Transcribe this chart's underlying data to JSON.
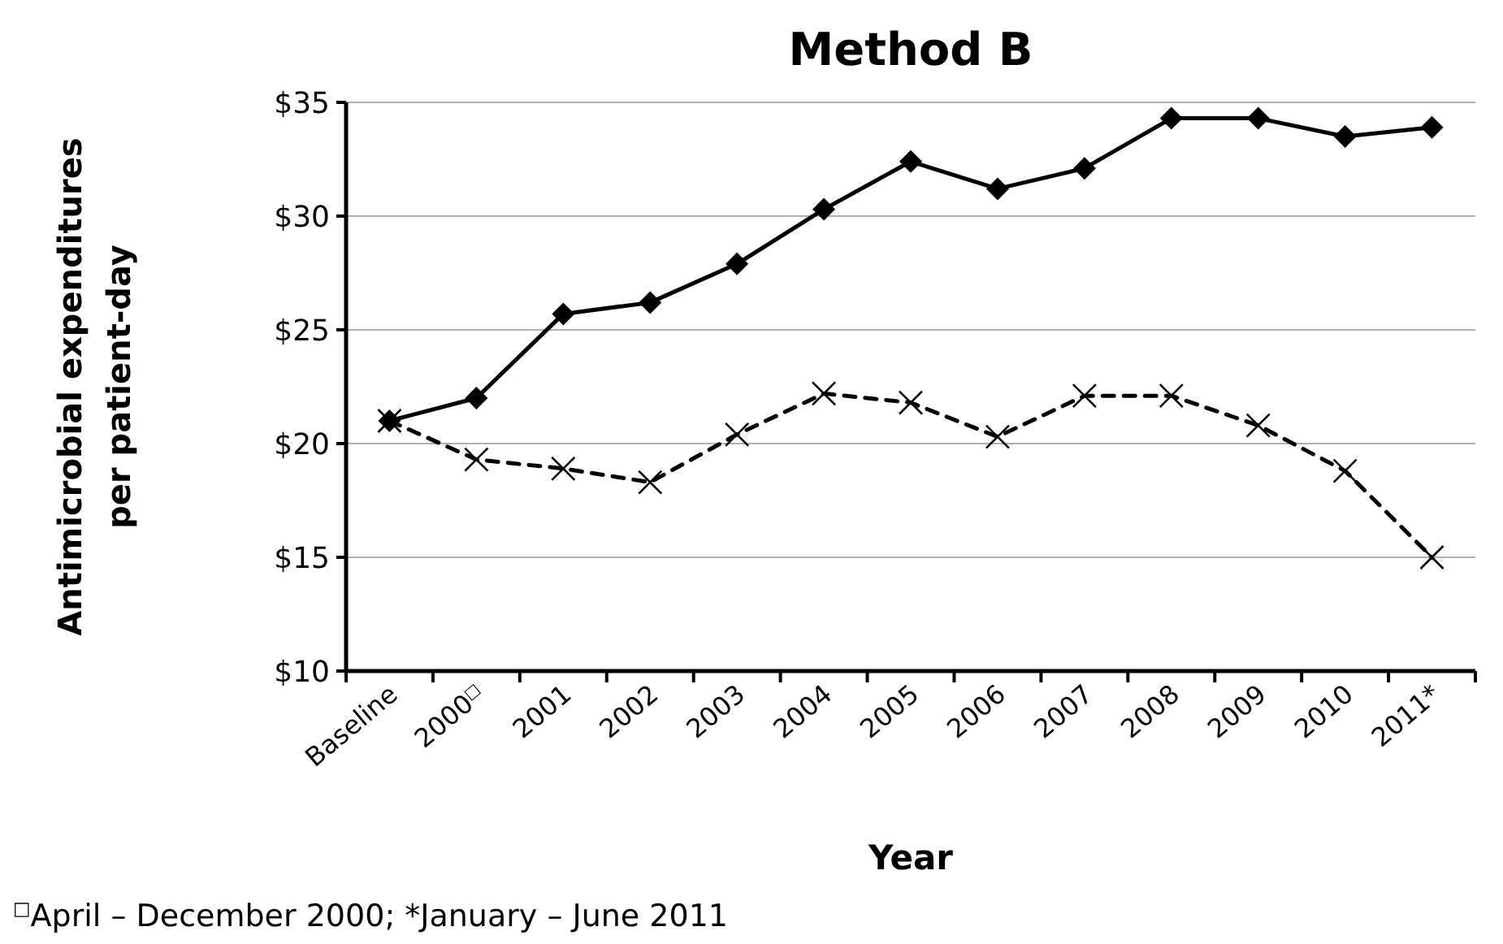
{
  "chart_data": {
    "type": "line",
    "title": "Method B",
    "xlabel": "Year",
    "ylabel": "Antimicrobial expenditures per patient-day",
    "categories": [
      "Baseline",
      "2000$^{□}$",
      "2001",
      "2002",
      "2003",
      "2004",
      "2005",
      "2006",
      "2007",
      "2008",
      "2009",
      "2010",
      "2011*"
    ],
    "series": [
      {
        "color": "#000000",
        "marker": "diamond",
        "line_style": "solid",
        "values": [
          21.0,
          22.0,
          25.7,
          26.2,
          27.9,
          30.3,
          32.4,
          31.2,
          32.1,
          34.3,
          34.3,
          33.5,
          33.9
        ]
      },
      {
        "color": "#000000",
        "marker": "cross",
        "line_style": "dashed",
        "values": [
          21.0,
          19.3,
          18.9,
          18.3,
          20.4,
          22.2,
          21.8,
          20.3,
          22.1,
          22.1,
          20.8,
          18.8,
          15.0
        ]
      }
    ],
    "ylim": [
      10,
      35
    ],
    "yticks": [
      {
        "value": 10,
        "label": "$10"
      },
      {
        "value": 15,
        "label": "$15"
      },
      {
        "value": 20,
        "label": "$20"
      },
      {
        "value": 25,
        "label": "$25"
      },
      {
        "value": 30,
        "label": "$30"
      },
      {
        "value": 35,
        "label": "$35"
      }
    ],
    "grid": "y",
    "annotations": [
      "$^{□}$April – December 2000; *January – June 2011"
    ]
  }
}
